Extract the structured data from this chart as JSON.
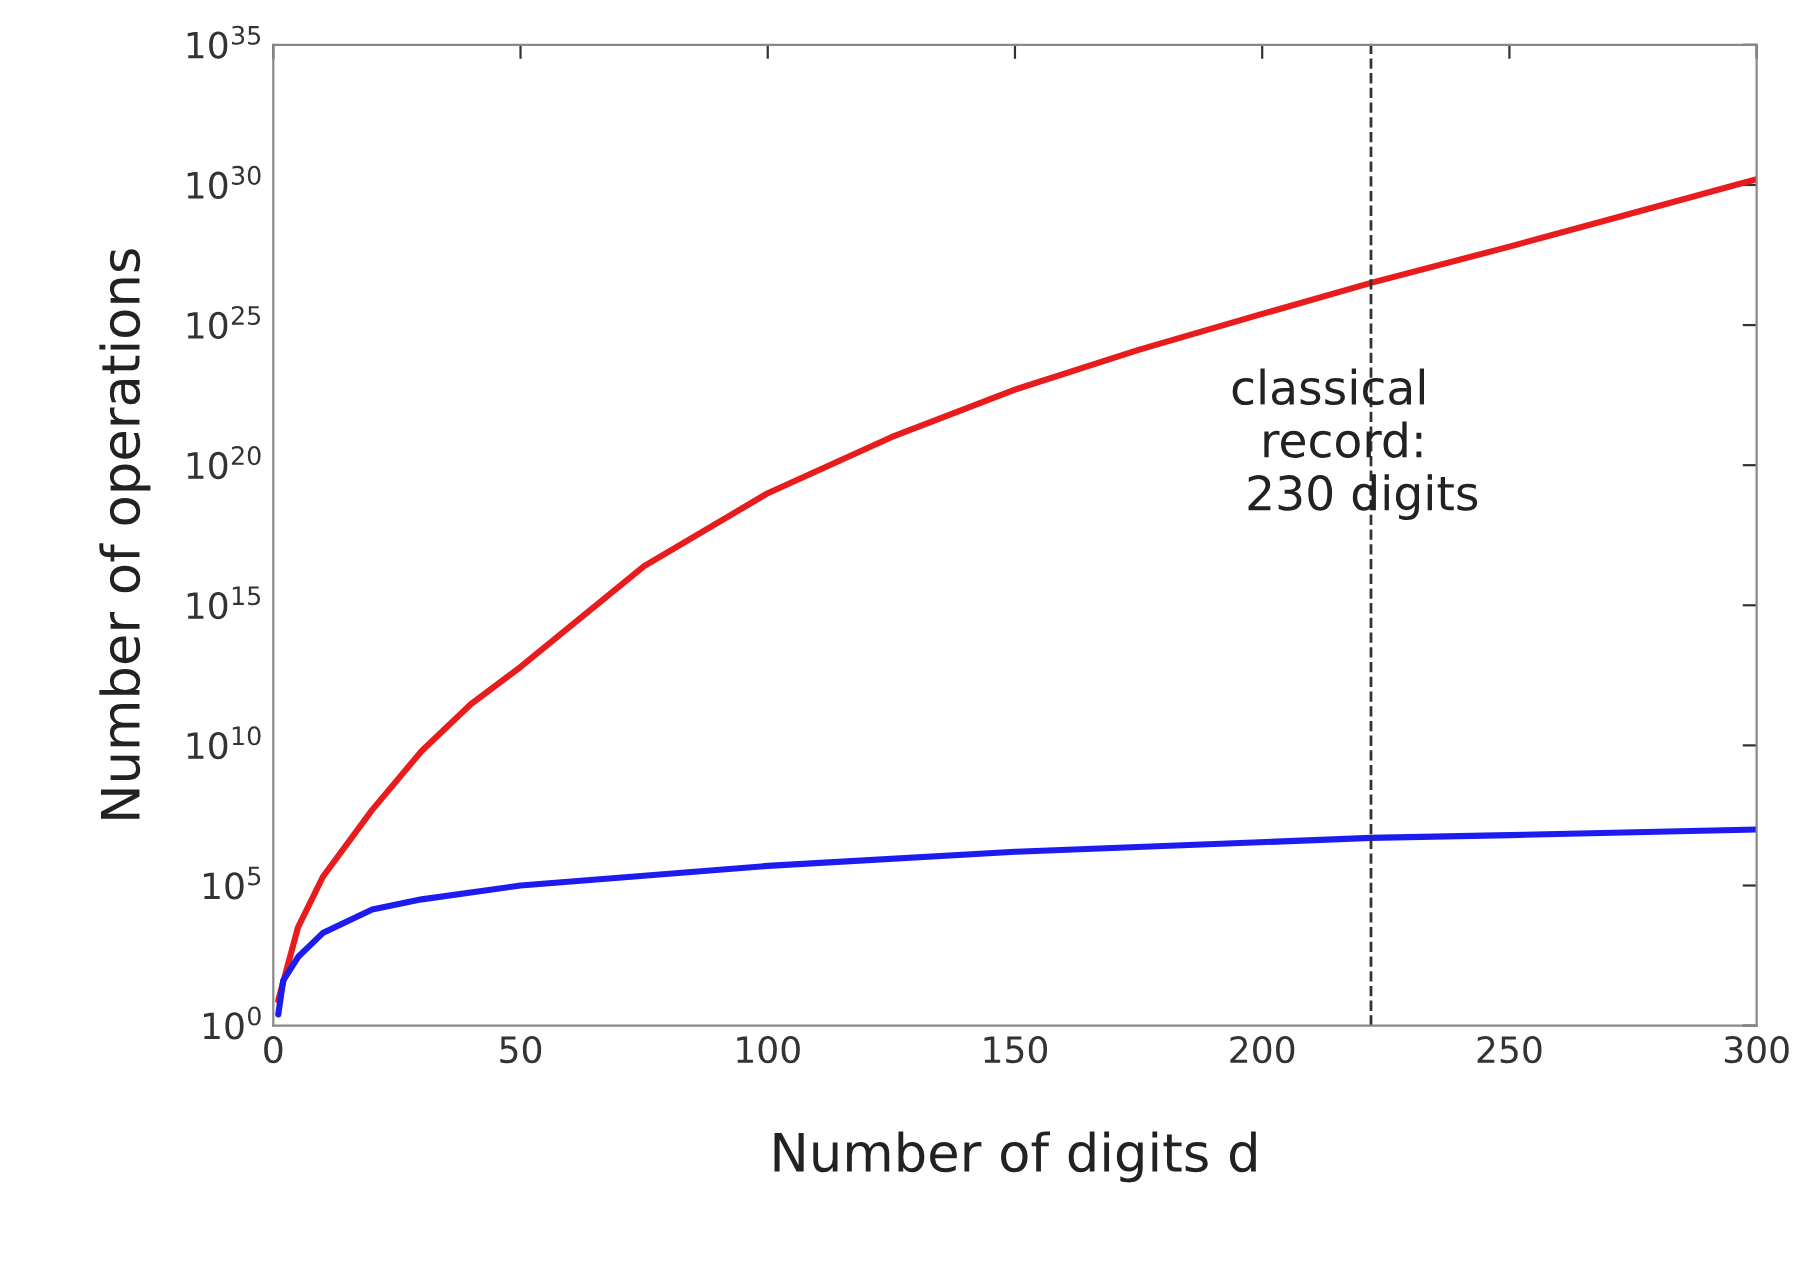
{
  "chart_data": {
    "type": "line",
    "xlabel": "Number of digits d",
    "ylabel": "Number of operations",
    "log": "y",
    "grid": false,
    "legend": false,
    "line_style": "solid",
    "marker": "none",
    "xlim": [
      0,
      300
    ],
    "xticks": [
      0,
      50,
      100,
      150,
      200,
      250,
      300
    ],
    "ylim": [
      1,
      1e+35
    ],
    "yticks": [
      {
        "value": 1,
        "label": "10$^{0}$"
      },
      {
        "value": 100000.0,
        "label": "10$^{5}$"
      },
      {
        "value": 10000000000.0,
        "label": "10$^{10}$"
      },
      {
        "value": 1000000000000000.0,
        "label": "10$^{15}$"
      },
      {
        "value": 1e+20,
        "label": "10$^{20}$"
      },
      {
        "value": 1e+25,
        "label": "10$^{25}$"
      },
      {
        "value": 1e+30,
        "label": "10$^{30}$"
      },
      {
        "value": 1e+35,
        "label": "10$^{35}$"
      }
    ],
    "series": [
      {
        "color": "#e81c1c",
        "x": [
          1,
          5,
          10,
          20,
          30,
          40,
          50,
          75,
          100,
          125,
          150,
          175,
          200,
          222,
          250,
          275,
          300
        ],
        "values": [
          8,
          3200.0,
          200000.0,
          50000000.0,
          6300000000.0,
          300000000000.0,
          6300000000000.0,
          2.5e+16,
          1e+19,
          1e+21,
          5e+22,
          1.3e+24,
          2.5e+25,
          3.2e+26,
          6.3e+27,
          1e+29,
          1.6e+30
        ]
      },
      {
        "color": "#1c1cf0",
        "x": [
          1,
          2,
          5,
          10,
          20,
          30,
          50,
          100,
          150,
          222,
          250,
          300
        ],
        "values": [
          2.5,
          40,
          280,
          2000.0,
          14000.0,
          32000.0,
          100000.0,
          500000.0,
          1600000.0,
          5000000.0,
          6300000.0,
          10000000.0
        ]
      }
    ],
    "annotations": [
      "classical\n  record:\n 230 digits"
    ],
    "ref_lines": [
      {
        "axis": "x",
        "value": 222,
        "color": "#333333",
        "line_style": "dashed"
      }
    ]
  }
}
